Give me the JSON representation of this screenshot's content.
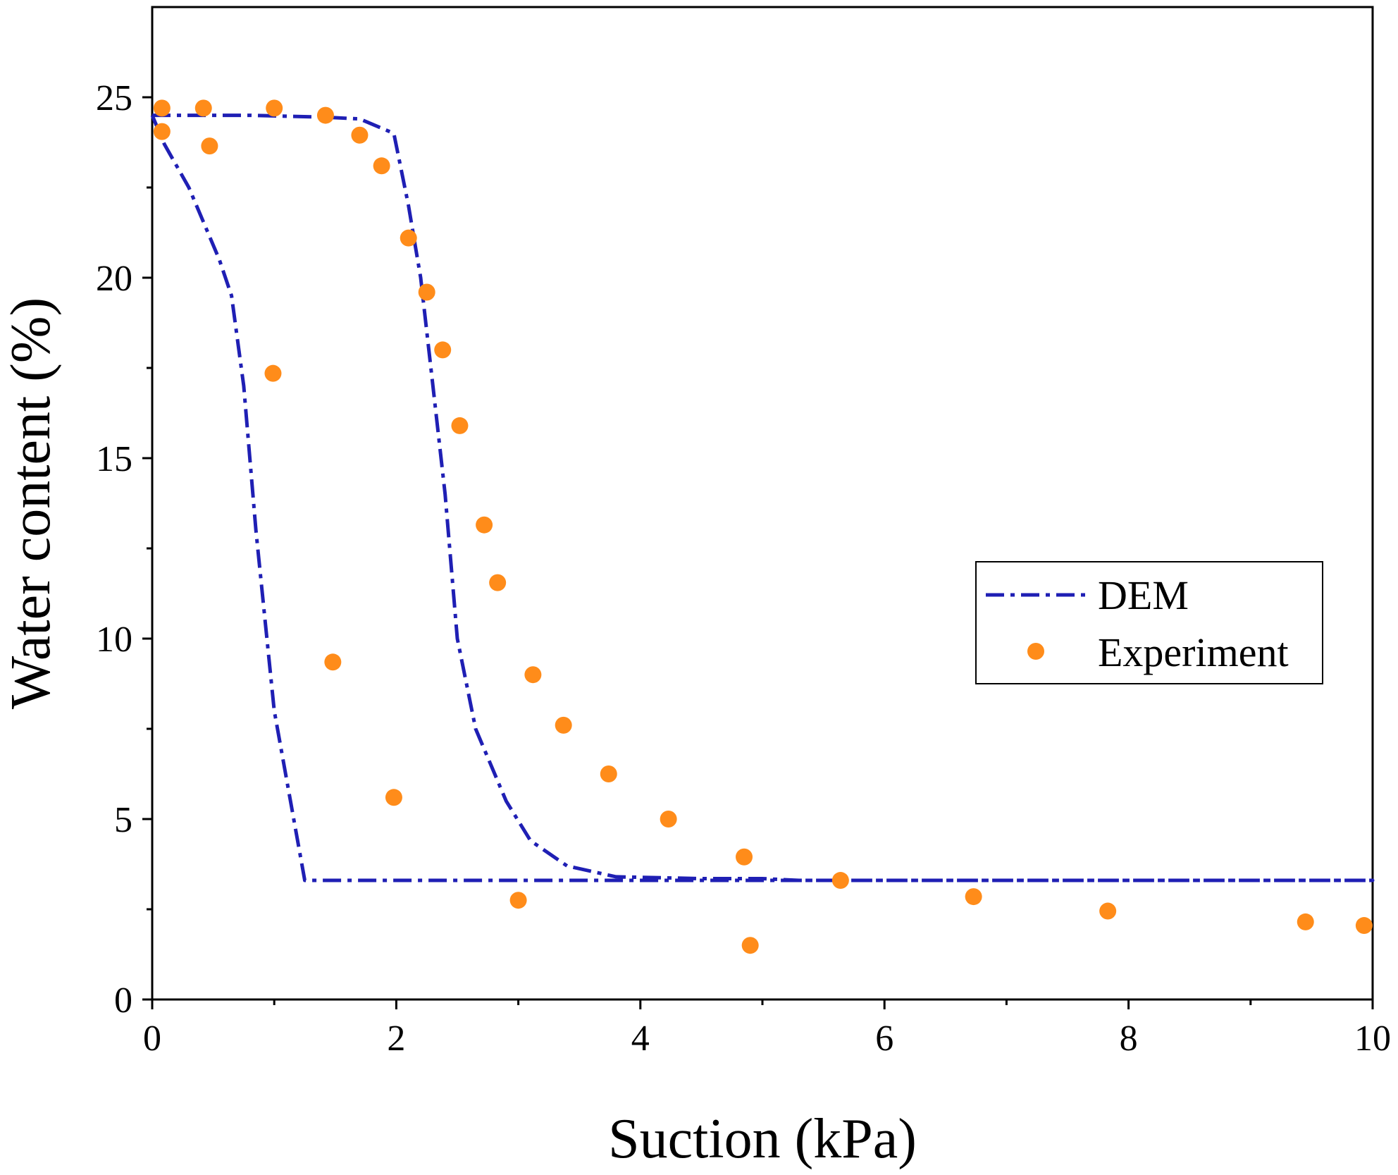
{
  "chart_data": {
    "type": "scatter",
    "xlabel": "Suction (kPa)",
    "ylabel": "Water content (%)",
    "xlim": [
      0,
      10
    ],
    "ylim": [
      0,
      27.5
    ],
    "x_ticks": [
      0,
      2,
      4,
      6,
      8,
      10
    ],
    "y_ticks": [
      0,
      5,
      10,
      15,
      20,
      25
    ],
    "x_minor_ticks": [
      1,
      3,
      5,
      7,
      9
    ],
    "y_minor_ticks": [
      2.5,
      7.5,
      12.5,
      17.5,
      22.5
    ],
    "grid": false,
    "legend_position": "center-right",
    "series": [
      {
        "name": "DEM",
        "type": "line",
        "style": "dash-dot",
        "color": "#1f1fb4",
        "points": [
          [
            0,
            24.5
          ],
          [
            0.8,
            24.5
          ],
          [
            1.4,
            24.45
          ],
          [
            1.7,
            24.4
          ],
          [
            1.98,
            24.0
          ],
          [
            2.1,
            22.0
          ],
          [
            2.2,
            20.0
          ],
          [
            2.3,
            17.0
          ],
          [
            2.4,
            14.0
          ],
          [
            2.5,
            10.0
          ],
          [
            2.65,
            7.5
          ],
          [
            2.9,
            5.5
          ],
          [
            3.1,
            4.4
          ],
          [
            3.4,
            3.7
          ],
          [
            3.8,
            3.4
          ],
          [
            4.5,
            3.35
          ],
          [
            5.0,
            3.35
          ],
          [
            5.3,
            3.3
          ],
          [
            10,
            3.3
          ],
          [
            1.25,
            3.3
          ],
          [
            1.0,
            8.0
          ],
          [
            0.85,
            13.0
          ],
          [
            0.75,
            17.0
          ],
          [
            0.65,
            19.5
          ],
          [
            0.55,
            20.5
          ],
          [
            0.3,
            22.5
          ],
          [
            0.1,
            23.7
          ],
          [
            0,
            24.5
          ]
        ]
      },
      {
        "name": "Experiment",
        "type": "scatter",
        "color": "#ff8c1a",
        "points": [
          [
            0.08,
            24.7
          ],
          [
            0.08,
            24.05
          ],
          [
            0.42,
            24.7
          ],
          [
            0.47,
            23.65
          ],
          [
            1.0,
            24.7
          ],
          [
            1.42,
            24.5
          ],
          [
            1.7,
            23.95
          ],
          [
            1.88,
            23.1
          ],
          [
            2.1,
            21.1
          ],
          [
            2.25,
            19.6
          ],
          [
            2.38,
            18.0
          ],
          [
            2.52,
            15.9
          ],
          [
            2.72,
            13.15
          ],
          [
            2.83,
            11.55
          ],
          [
            3.12,
            9.0
          ],
          [
            3.37,
            7.6
          ],
          [
            3.74,
            6.25
          ],
          [
            4.23,
            5.0
          ],
          [
            4.85,
            3.95
          ],
          [
            5.64,
            3.3
          ],
          [
            6.73,
            2.85
          ],
          [
            7.83,
            2.45
          ],
          [
            9.45,
            2.15
          ],
          [
            9.93,
            2.05
          ],
          [
            0.99,
            17.35
          ],
          [
            1.48,
            9.35
          ],
          [
            1.98,
            5.6
          ],
          [
            3.0,
            2.75
          ],
          [
            4.9,
            1.5
          ]
        ]
      }
    ]
  }
}
